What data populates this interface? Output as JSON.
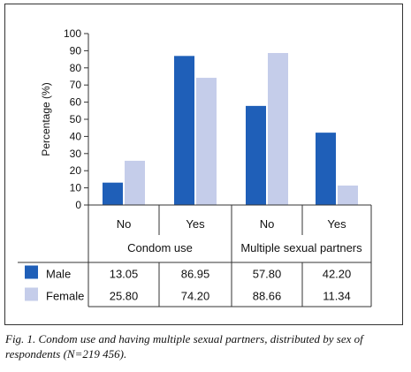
{
  "chart_data": {
    "type": "bar",
    "categories": [
      "No",
      "Yes",
      "No",
      "Yes"
    ],
    "groups": [
      {
        "label": "Condom use",
        "span": [
          0,
          1
        ]
      },
      {
        "label": "Multiple sexual partners",
        "span": [
          2,
          3
        ]
      }
    ],
    "series": [
      {
        "name": "Male",
        "values": [
          13.05,
          86.95,
          57.8,
          42.2
        ],
        "labels": [
          "13.05",
          "86.95",
          "57.80",
          "42.20"
        ],
        "color": "#1f5fb8"
      },
      {
        "name": "Female",
        "values": [
          25.8,
          74.2,
          88.66,
          11.34
        ],
        "labels": [
          "25.80",
          "74.20",
          "88.66",
          "11.34"
        ],
        "color": "#c5cdea"
      }
    ],
    "ylabel": "Percentage (%)",
    "ylim": [
      0,
      100
    ],
    "yticks": [
      0,
      10,
      20,
      30,
      40,
      50,
      60,
      70,
      80,
      90,
      100
    ],
    "grid": false,
    "legend": "table-left"
  },
  "caption": "Fig. 1. Condom use and having multiple sexual partners, distributed by sex of respondents (N=219 456)."
}
